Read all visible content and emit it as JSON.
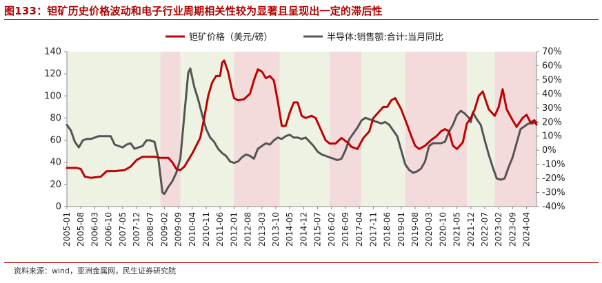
{
  "figure": {
    "title": "图133：钽矿历史价格波动和电子行业周期相关性较为显著且呈现出一定的滞后性",
    "source": "资料来源：wind，亚洲金属网，民生证券研究院"
  },
  "chart_data": {
    "type": "line",
    "x_tick_labels": [
      "2005-01",
      "2005-08",
      "2006-03",
      "2006-10",
      "2007-05",
      "2007-12",
      "2008-07",
      "2009-02",
      "2009-09",
      "2010-04",
      "2010-11",
      "2011-06",
      "2012-01",
      "2012-08",
      "2013-03",
      "2013-10",
      "2014-05",
      "2014-12",
      "2015-07",
      "2016-02",
      "2016-09",
      "2017-04",
      "2017-11",
      "2018-06",
      "2019-01",
      "2019-08",
      "2020-03",
      "2020-10",
      "2021-05",
      "2021-12",
      "2022-07",
      "2023-02",
      "2023-09",
      "2024-04"
    ],
    "x_range": [
      "2005-01",
      "2024-09"
    ],
    "y_left": {
      "ylim": [
        0,
        140
      ],
      "ticks": [
        "0",
        "20",
        "40",
        "60",
        "80",
        "100",
        "120",
        "140"
      ]
    },
    "y_right": {
      "ylim": [
        -40,
        70
      ],
      "ticks": [
        "-40%",
        "-30%",
        "-20%",
        "-10%",
        "0%",
        "10%",
        "20%",
        "30%",
        "40%",
        "50%",
        "60%",
        "70%"
      ]
    },
    "grid": false,
    "legend_position": "top",
    "background_bands": [
      {
        "start": "2005-01",
        "end": "2008-12",
        "color": "#eef2e3"
      },
      {
        "start": "2008-12",
        "end": "2009-10",
        "color": "#f3dbdc"
      },
      {
        "start": "2009-10",
        "end": "2012-01",
        "color": "#eef2e3"
      },
      {
        "start": "2012-01",
        "end": "2013-12",
        "color": "#f3dbdc"
      },
      {
        "start": "2013-12",
        "end": "2016-01",
        "color": "#eef2e3"
      },
      {
        "start": "2016-01",
        "end": "2017-05",
        "color": "#f3dbdc"
      },
      {
        "start": "2017-05",
        "end": "2019-03",
        "color": "#eef2e3"
      },
      {
        "start": "2019-03",
        "end": "2021-10",
        "color": "#f3dbdc"
      },
      {
        "start": "2021-10",
        "end": "2022-12",
        "color": "#eef2e3"
      },
      {
        "start": "2022-12",
        "end": "2024-09",
        "color": "#f3dbdc"
      }
    ],
    "series": [
      {
        "name": "钽矿价格（美元/磅）",
        "axis": "left",
        "color": "#c00000",
        "points": [
          [
            "2005-01",
            35
          ],
          [
            "2005-06",
            35
          ],
          [
            "2005-08",
            34
          ],
          [
            "2005-10",
            27
          ],
          [
            "2006-01",
            26
          ],
          [
            "2006-06",
            27
          ],
          [
            "2006-09",
            32
          ],
          [
            "2007-01",
            32
          ],
          [
            "2007-06",
            33
          ],
          [
            "2007-09",
            36
          ],
          [
            "2007-12",
            42
          ],
          [
            "2008-03",
            45
          ],
          [
            "2008-06",
            45
          ],
          [
            "2008-09",
            45
          ],
          [
            "2008-12",
            44
          ],
          [
            "2009-04",
            44
          ],
          [
            "2009-06",
            40
          ],
          [
            "2009-08",
            34
          ],
          [
            "2009-10",
            33
          ],
          [
            "2009-12",
            36
          ],
          [
            "2010-02",
            42
          ],
          [
            "2010-04",
            48
          ],
          [
            "2010-06",
            55
          ],
          [
            "2010-08",
            62
          ],
          [
            "2010-10",
            80
          ],
          [
            "2010-12",
            100
          ],
          [
            "2011-02",
            112
          ],
          [
            "2011-04",
            118
          ],
          [
            "2011-06",
            118
          ],
          [
            "2011-07",
            130
          ],
          [
            "2011-08",
            132
          ],
          [
            "2011-10",
            122
          ],
          [
            "2011-12",
            105
          ],
          [
            "2012-01",
            98
          ],
          [
            "2012-03",
            96
          ],
          [
            "2012-06",
            97
          ],
          [
            "2012-09",
            102
          ],
          [
            "2012-11",
            114
          ],
          [
            "2013-01",
            124
          ],
          [
            "2013-03",
            122
          ],
          [
            "2013-05",
            116
          ],
          [
            "2013-07",
            118
          ],
          [
            "2013-09",
            114
          ],
          [
            "2013-11",
            95
          ],
          [
            "2014-01",
            73
          ],
          [
            "2014-03",
            73
          ],
          [
            "2014-05",
            85
          ],
          [
            "2014-07",
            94
          ],
          [
            "2014-09",
            94
          ],
          [
            "2014-11",
            82
          ],
          [
            "2015-01",
            80
          ],
          [
            "2015-04",
            82
          ],
          [
            "2015-06",
            80
          ],
          [
            "2015-09",
            68
          ],
          [
            "2015-11",
            60
          ],
          [
            "2016-01",
            57
          ],
          [
            "2016-04",
            57
          ],
          [
            "2016-07",
            62
          ],
          [
            "2016-10",
            58
          ],
          [
            "2016-12",
            54
          ],
          [
            "2017-03",
            52
          ],
          [
            "2017-06",
            62
          ],
          [
            "2017-09",
            68
          ],
          [
            "2017-11",
            80
          ],
          [
            "2018-01",
            84
          ],
          [
            "2018-04",
            90
          ],
          [
            "2018-06",
            90
          ],
          [
            "2018-08",
            96
          ],
          [
            "2018-10",
            98
          ],
          [
            "2019-01",
            88
          ],
          [
            "2019-04",
            74
          ],
          [
            "2019-06",
            64
          ],
          [
            "2019-08",
            55
          ],
          [
            "2019-10",
            52
          ],
          [
            "2020-01",
            55
          ],
          [
            "2020-04",
            60
          ],
          [
            "2020-07",
            64
          ],
          [
            "2020-09",
            68
          ],
          [
            "2020-11",
            70
          ],
          [
            "2021-01",
            68
          ],
          [
            "2021-03",
            55
          ],
          [
            "2021-05",
            52
          ],
          [
            "2021-08",
            58
          ],
          [
            "2021-10",
            75
          ],
          [
            "2021-12",
            80
          ],
          [
            "2022-02",
            88
          ],
          [
            "2022-04",
            100
          ],
          [
            "2022-06",
            104
          ],
          [
            "2022-09",
            88
          ],
          [
            "2022-12",
            82
          ],
          [
            "2023-02",
            90
          ],
          [
            "2023-04",
            106
          ],
          [
            "2023-06",
            88
          ],
          [
            "2023-09",
            78
          ],
          [
            "2023-11",
            72
          ],
          [
            "2024-02",
            80
          ],
          [
            "2024-04",
            83
          ],
          [
            "2024-06",
            76
          ],
          [
            "2024-08",
            78
          ],
          [
            "2024-09",
            74
          ]
        ]
      },
      {
        "name": "半导体:销售额:合计:当月同比",
        "axis": "right",
        "color": "#545454",
        "points": [
          [
            "2005-01",
            18
          ],
          [
            "2005-03",
            14
          ],
          [
            "2005-05",
            6
          ],
          [
            "2005-07",
            2
          ],
          [
            "2005-09",
            7
          ],
          [
            "2005-11",
            8
          ],
          [
            "2006-01",
            8
          ],
          [
            "2006-03",
            9
          ],
          [
            "2006-05",
            10
          ],
          [
            "2006-07",
            10
          ],
          [
            "2006-09",
            10
          ],
          [
            "2006-11",
            10
          ],
          [
            "2007-01",
            4
          ],
          [
            "2007-03",
            3
          ],
          [
            "2007-05",
            2
          ],
          [
            "2007-07",
            4
          ],
          [
            "2007-09",
            5
          ],
          [
            "2007-11",
            1
          ],
          [
            "2008-01",
            2
          ],
          [
            "2008-03",
            3
          ],
          [
            "2008-05",
            7
          ],
          [
            "2008-07",
            7
          ],
          [
            "2008-09",
            6
          ],
          [
            "2008-11",
            -6
          ],
          [
            "2009-01",
            -30
          ],
          [
            "2009-02",
            -31
          ],
          [
            "2009-04",
            -26
          ],
          [
            "2009-06",
            -22
          ],
          [
            "2009-08",
            -16
          ],
          [
            "2009-10",
            -6
          ],
          [
            "2009-12",
            25
          ],
          [
            "2010-02",
            55
          ],
          [
            "2010-03",
            58
          ],
          [
            "2010-05",
            45
          ],
          [
            "2010-07",
            36
          ],
          [
            "2010-09",
            25
          ],
          [
            "2010-11",
            15
          ],
          [
            "2011-01",
            9
          ],
          [
            "2011-03",
            6
          ],
          [
            "2011-05",
            1
          ],
          [
            "2011-07",
            -2
          ],
          [
            "2011-09",
            -4
          ],
          [
            "2011-11",
            -8
          ],
          [
            "2012-01",
            -9
          ],
          [
            "2012-03",
            -8
          ],
          [
            "2012-05",
            -5
          ],
          [
            "2012-07",
            -3
          ],
          [
            "2012-09",
            -4
          ],
          [
            "2012-11",
            -6
          ],
          [
            "2013-01",
            1
          ],
          [
            "2013-03",
            3
          ],
          [
            "2013-05",
            5
          ],
          [
            "2013-07",
            4
          ],
          [
            "2013-09",
            7
          ],
          [
            "2013-11",
            9
          ],
          [
            "2014-01",
            8
          ],
          [
            "2014-03",
            10
          ],
          [
            "2014-05",
            11
          ],
          [
            "2014-07",
            9
          ],
          [
            "2014-09",
            9
          ],
          [
            "2014-11",
            8
          ],
          [
            "2015-01",
            9
          ],
          [
            "2015-03",
            6
          ],
          [
            "2015-05",
            3
          ],
          [
            "2015-07",
            -1
          ],
          [
            "2015-09",
            -3
          ],
          [
            "2015-11",
            -4
          ],
          [
            "2016-01",
            -5
          ],
          [
            "2016-03",
            -6
          ],
          [
            "2016-05",
            -7
          ],
          [
            "2016-07",
            -6
          ],
          [
            "2016-09",
            0
          ],
          [
            "2016-11",
            8
          ],
          [
            "2017-01",
            12
          ],
          [
            "2017-03",
            16
          ],
          [
            "2017-05",
            21
          ],
          [
            "2017-07",
            23
          ],
          [
            "2017-09",
            22
          ],
          [
            "2017-11",
            21
          ],
          [
            "2018-01",
            20
          ],
          [
            "2018-03",
            19
          ],
          [
            "2018-05",
            20
          ],
          [
            "2018-07",
            18
          ],
          [
            "2018-09",
            14
          ],
          [
            "2018-11",
            10
          ],
          [
            "2019-01",
            0
          ],
          [
            "2019-03",
            -10
          ],
          [
            "2019-05",
            -14
          ],
          [
            "2019-07",
            -16
          ],
          [
            "2019-09",
            -15
          ],
          [
            "2019-11",
            -13
          ],
          [
            "2020-01",
            -8
          ],
          [
            "2020-03",
            3
          ],
          [
            "2020-05",
            5
          ],
          [
            "2020-07",
            5
          ],
          [
            "2020-09",
            5
          ],
          [
            "2020-11",
            6
          ],
          [
            "2021-01",
            13
          ],
          [
            "2021-03",
            18
          ],
          [
            "2021-05",
            25
          ],
          [
            "2021-07",
            28
          ],
          [
            "2021-09",
            26
          ],
          [
            "2021-11",
            23
          ],
          [
            "2021-12",
            20
          ],
          [
            "2022-01",
            27
          ],
          [
            "2022-03",
            22
          ],
          [
            "2022-05",
            18
          ],
          [
            "2022-07",
            7
          ],
          [
            "2022-09",
            -3
          ],
          [
            "2022-11",
            -12
          ],
          [
            "2023-01",
            -20
          ],
          [
            "2023-03",
            -21
          ],
          [
            "2023-05",
            -20
          ],
          [
            "2023-07",
            -12
          ],
          [
            "2023-09",
            -5
          ],
          [
            "2023-11",
            5
          ],
          [
            "2024-01",
            15
          ],
          [
            "2024-03",
            17
          ],
          [
            "2024-05",
            19
          ],
          [
            "2024-07",
            19
          ],
          [
            "2024-09",
            20
          ]
        ]
      }
    ]
  }
}
